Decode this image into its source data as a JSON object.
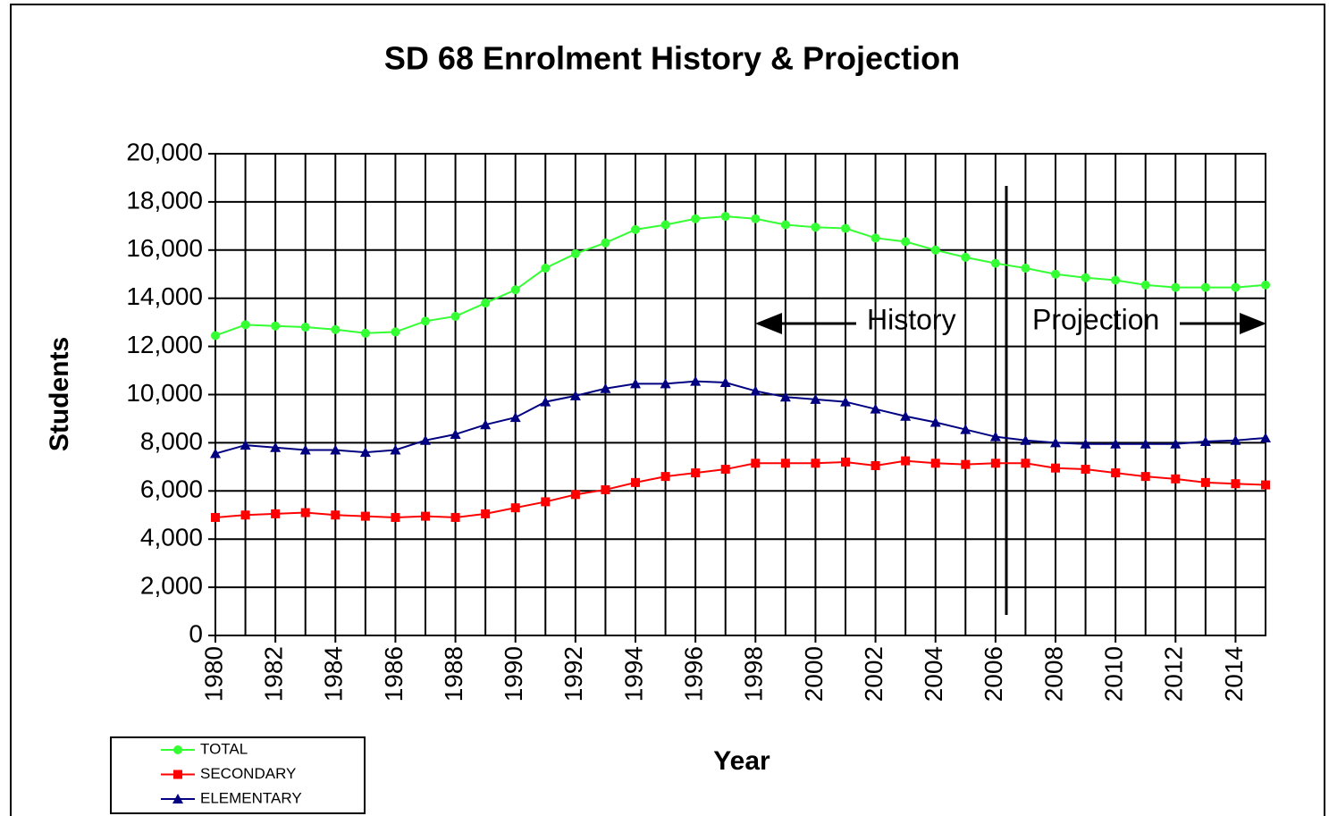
{
  "chart_data": {
    "type": "line",
    "title": "SD 68 Enrolment History & Projection",
    "xlabel": "Year",
    "ylabel": "Students",
    "annotations": [
      "History",
      "Projection"
    ],
    "x": [
      1980,
      1981,
      1982,
      1983,
      1984,
      1985,
      1986,
      1987,
      1988,
      1989,
      1990,
      1991,
      1992,
      1993,
      1994,
      1995,
      1996,
      1997,
      1998,
      1999,
      2000,
      2001,
      2002,
      2003,
      2004,
      2005,
      2006,
      2007,
      2008,
      2009,
      2010,
      2011,
      2012,
      2013,
      2014,
      2015
    ],
    "series": [
      {
        "name": "TOTAL",
        "color": "#33ff33",
        "marker": "circle",
        "values": [
          12450,
          12900,
          12850,
          12800,
          12700,
          12550,
          12600,
          13050,
          13250,
          13800,
          14350,
          15250,
          15850,
          16300,
          16850,
          17050,
          17300,
          17400,
          17300,
          17050,
          16950,
          16900,
          16500,
          16350,
          16000,
          15700,
          15450,
          15250,
          15000,
          14850,
          14750,
          14550,
          14450,
          14450,
          14450,
          14550
        ]
      },
      {
        "name": "SECONDARY",
        "color": "#ff0000",
        "marker": "square",
        "values": [
          4900,
          5000,
          5050,
          5100,
          5000,
          4950,
          4900,
          4950,
          4900,
          5050,
          5300,
          5550,
          5850,
          6050,
          6350,
          6600,
          6750,
          6900,
          7150,
          7150,
          7150,
          7200,
          7050,
          7250,
          7150,
          7100,
          7150,
          7150,
          6950,
          6900,
          6750,
          6600,
          6500,
          6350,
          6300,
          6250
        ]
      },
      {
        "name": "ELEMENTARY",
        "color": "#000080",
        "marker": "triangle",
        "values": [
          7550,
          7900,
          7800,
          7700,
          7700,
          7600,
          7700,
          8100,
          8350,
          8750,
          9050,
          9700,
          9950,
          10250,
          10450,
          10450,
          10550,
          10500,
          10150,
          9900,
          9800,
          9700,
          9400,
          9100,
          8850,
          8550,
          8250,
          8100,
          8000,
          7950,
          7950,
          7950,
          7950,
          8050,
          8100,
          8200
        ]
      }
    ],
    "xlim": [
      1980,
      2015
    ],
    "xticks": [
      1980,
      1982,
      1984,
      1986,
      1988,
      1990,
      1992,
      1994,
      1996,
      1998,
      2000,
      2002,
      2004,
      2006,
      2008,
      2010,
      2012,
      2014
    ],
    "ylim": [
      0,
      20000
    ],
    "yticks": [
      0,
      {
        "value": 2000,
        "label": "2,000"
      },
      {
        "value": 4000,
        "label": "4,000"
      },
      {
        "value": 6000,
        "label": "6,000"
      },
      {
        "value": 8000,
        "label": "8,000"
      },
      {
        "value": 10000,
        "label": "10,000"
      },
      {
        "value": 12000,
        "label": "12,000"
      },
      {
        "value": 14000,
        "label": "14,000"
      },
      {
        "value": 16000,
        "label": "16,000"
      },
      {
        "value": 18000,
        "label": "18,000"
      },
      {
        "value": 20000,
        "label": "20,000"
      }
    ],
    "grid": true,
    "legend": "bottom-left"
  }
}
